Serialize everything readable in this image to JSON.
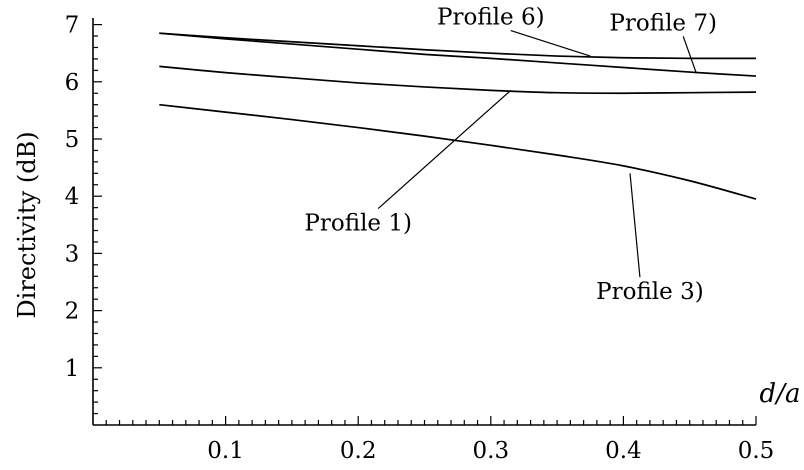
{
  "chart_data": {
    "type": "line",
    "title": "",
    "xlabel": "d/a",
    "ylabel": "Directivity (dB)",
    "xlim": [
      0,
      0.5
    ],
    "ylim": [
      0,
      7
    ],
    "xticks": [
      0.1,
      0.2,
      0.3,
      0.4,
      0.5
    ],
    "xtick_labels": [
      "0.1",
      "0.2",
      "0.3",
      "0.4",
      "0.5"
    ],
    "yticks": [
      1,
      2,
      3,
      4,
      5,
      6,
      7
    ],
    "ytick_labels": [
      "1",
      "2",
      "3",
      "4",
      "5",
      "6",
      "7"
    ],
    "grid": false,
    "series": [
      {
        "name": "Profile 1)",
        "x": [
          0.05,
          0.1,
          0.15,
          0.2,
          0.25,
          0.3,
          0.35,
          0.4,
          0.45,
          0.5
        ],
        "y": [
          6.27,
          6.16,
          6.07,
          5.98,
          5.91,
          5.85,
          5.81,
          5.8,
          5.81,
          5.82
        ]
      },
      {
        "name": "Profile 3)",
        "x": [
          0.05,
          0.1,
          0.15,
          0.2,
          0.25,
          0.3,
          0.35,
          0.4,
          0.45,
          0.5
        ],
        "y": [
          5.6,
          5.47,
          5.34,
          5.2,
          5.05,
          4.89,
          4.72,
          4.53,
          4.27,
          3.95
        ]
      },
      {
        "name": "Profile 6)",
        "x": [
          0.05,
          0.1,
          0.15,
          0.2,
          0.25,
          0.3,
          0.35,
          0.4,
          0.45,
          0.5
        ],
        "y": [
          6.85,
          6.77,
          6.7,
          6.63,
          6.56,
          6.5,
          6.45,
          6.42,
          6.41,
          6.41
        ]
      },
      {
        "name": "Profile 7)",
        "x": [
          0.05,
          0.1,
          0.15,
          0.2,
          0.25,
          0.3,
          0.35,
          0.4,
          0.45,
          0.5
        ],
        "y": [
          6.85,
          6.75,
          6.66,
          6.57,
          6.48,
          6.41,
          6.33,
          6.25,
          6.17,
          6.1
        ]
      }
    ],
    "annotations": [
      {
        "text": "Profile 1)",
        "series": "Profile 1)",
        "at": [
          0.315,
          5.85
        ],
        "label_at": [
          0.2,
          3.4
        ]
      },
      {
        "text": "Profile 3)",
        "series": "Profile 3)",
        "at": [
          0.405,
          4.4
        ],
        "label_at": [
          0.42,
          2.2
        ]
      },
      {
        "text": "Profile 6)",
        "series": "Profile 6)",
        "at": [
          0.375,
          6.45
        ],
        "label_at": [
          0.3,
          7.0
        ]
      },
      {
        "text": "Profile 7)",
        "series": "Profile 7)",
        "at": [
          0.455,
          6.15
        ],
        "label_at": [
          0.43,
          6.9
        ]
      }
    ]
  }
}
